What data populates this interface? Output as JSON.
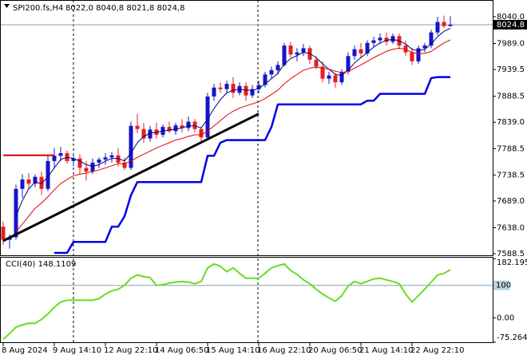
{
  "chart_data": [
    {
      "type": "candlestick",
      "title": "SPI200.fs,H4",
      "ohlc_label": "8022,0 8040,8 8021,8 8024,8",
      "categories": [
        "8 Aug 2024",
        null,
        null,
        null,
        null,
        null,
        null,
        null,
        "9 Aug 14:10",
        null,
        null,
        null,
        null,
        null,
        null,
        null,
        "12 Aug 22:10",
        null,
        null,
        null,
        null,
        null,
        null,
        null,
        "14 Aug 06:50",
        null,
        null,
        null,
        null,
        null,
        null,
        null,
        "15 Aug 14:10",
        null,
        null,
        null,
        null,
        null,
        null,
        null,
        "16 Aug 22:10",
        null,
        null,
        null,
        null,
        null,
        null,
        null,
        "20 Aug 06:50",
        null,
        null,
        null,
        null,
        null,
        null,
        null,
        "21 Aug 14:10",
        null,
        null,
        null,
        null,
        null,
        null,
        null,
        "22 Aug 22:10",
        null,
        null,
        null,
        null,
        null,
        null
      ],
      "open": [
        7640,
        7615,
        7620,
        7712,
        7730,
        7722,
        7735,
        7712,
        7765,
        7775,
        7780,
        7765,
        7770,
        7752,
        7745,
        7762,
        7768,
        7772,
        7776,
        7762,
        7752,
        7832,
        7826,
        7808,
        7825,
        7815,
        7830,
        7822,
        7833,
        7828,
        7840,
        7826,
        7810,
        7888,
        7905,
        7902,
        7912,
        7895,
        7908,
        7890,
        7902,
        7910,
        7930,
        7938,
        7948,
        7985,
        7968,
        7972,
        7980,
        7958,
        7945,
        7922,
        7928,
        7915,
        7935,
        7965,
        7978,
        7970,
        7990,
        7995,
        8000,
        7992,
        8003,
        7985,
        7972,
        7955,
        7980,
        7985,
        8010,
        8030,
        8022.0
      ],
      "high": [
        7650,
        7625,
        7720,
        7740,
        7742,
        7740,
        7745,
        7775,
        7790,
        7792,
        7785,
        7775,
        7778,
        7765,
        7770,
        7772,
        7780,
        7782,
        7790,
        7772,
        7840,
        7855,
        7838,
        7832,
        7838,
        7835,
        7840,
        7838,
        7845,
        7850,
        7845,
        7830,
        7895,
        7912,
        7915,
        7918,
        7925,
        7915,
        7915,
        7910,
        7918,
        7935,
        7945,
        7955,
        7990,
        7992,
        7980,
        7988,
        7985,
        7965,
        7955,
        7935,
        7932,
        7940,
        7972,
        7985,
        7990,
        7995,
        8002,
        8008,
        8010,
        8008,
        8008,
        7995,
        7980,
        7985,
        7990,
        8015,
        8040,
        8042,
        8040.8
      ],
      "low": [
        7605,
        7598,
        7615,
        7695,
        7712,
        7715,
        7700,
        7708,
        7752,
        7765,
        7760,
        7755,
        7740,
        7728,
        7740,
        7752,
        7758,
        7762,
        7755,
        7748,
        7748,
        7818,
        7800,
        7802,
        7808,
        7810,
        7818,
        7815,
        7820,
        7822,
        7820,
        7800,
        7805,
        7880,
        7895,
        7895,
        7885,
        7890,
        7880,
        7885,
        7895,
        7905,
        7922,
        7930,
        7945,
        7962,
        7955,
        7965,
        7950,
        7940,
        7915,
        7912,
        7905,
        7910,
        7930,
        7958,
        7962,
        7965,
        7982,
        7988,
        7985,
        7988,
        7978,
        7965,
        7948,
        7950,
        7972,
        7980,
        8005,
        8018,
        8021.8
      ],
      "close": [
        7615,
        7620,
        7712,
        7730,
        7722,
        7735,
        7712,
        7765,
        7775,
        7780,
        7765,
        7770,
        7752,
        7745,
        7762,
        7768,
        7772,
        7776,
        7762,
        7752,
        7832,
        7826,
        7808,
        7825,
        7815,
        7830,
        7822,
        7833,
        7828,
        7840,
        7826,
        7810,
        7888,
        7905,
        7902,
        7912,
        7895,
        7908,
        7890,
        7902,
        7910,
        7930,
        7938,
        7948,
        7985,
        7968,
        7972,
        7980,
        7958,
        7945,
        7922,
        7928,
        7915,
        7935,
        7965,
        7978,
        7970,
        7990,
        7995,
        8000,
        7992,
        8003,
        7985,
        7972,
        7955,
        7980,
        7985,
        8010,
        8030,
        8022,
        8024.8
      ],
      "up_color": "#1515c8",
      "down_color": "#e61e1e",
      "overlays": [
        {
          "color": "#000080",
          "line_width": 1,
          "values": [
            null,
            null,
            7660,
            7690,
            7712,
            7725,
            7722,
            7735,
            7752,
            7768,
            7772,
            7770,
            7765,
            7758,
            7755,
            7758,
            7765,
            7770,
            7770,
            7765,
            7780,
            7800,
            7812,
            7818,
            7820,
            7822,
            7824,
            7826,
            7828,
            7832,
            7832,
            7828,
            7845,
            7865,
            7882,
            7895,
            7900,
            7902,
            7900,
            7900,
            7903,
            7912,
            7922,
            7932,
            7950,
            7960,
            7966,
            7972,
            7970,
            7962,
            7950,
            7940,
            7930,
            7928,
            7938,
            7952,
            7962,
            7972,
            7982,
            7990,
            7995,
            7997,
            7994,
            7988,
            7978,
            7975,
            7978,
            7988,
            8002,
            8012,
            8018
          ]
        },
        {
          "color": "#e00000",
          "line_width": 1,
          "values": [
            null,
            null,
            7630,
            7645,
            7660,
            7675,
            7685,
            7697,
            7710,
            7722,
            7730,
            7737,
            7740,
            7742,
            7745,
            7748,
            7752,
            7756,
            7760,
            7760,
            7765,
            7772,
            7778,
            7784,
            7790,
            7795,
            7800,
            7805,
            7808,
            7812,
            7815,
            7815,
            7822,
            7832,
            7842,
            7852,
            7860,
            7866,
            7870,
            7874,
            7878,
            7884,
            7892,
            7900,
            7912,
            7922,
            7930,
            7938,
            7942,
            7944,
            7942,
            7940,
            7936,
            7934,
            7936,
            7942,
            7948,
            7955,
            7962,
            7968,
            7974,
            7978,
            7980,
            7978,
            7972,
            7970,
            7970,
            7974,
            7982,
            7990,
            7996
          ]
        },
        {
          "color": "#0000e6",
          "line_width": 2.5,
          "values": [
            null,
            null,
            null,
            null,
            null,
            null,
            null,
            null,
            7590,
            7590,
            7590,
            7611,
            7611,
            7611,
            7611,
            7611,
            7611,
            7640,
            7640,
            7660,
            7700,
            7725,
            7725,
            7725,
            7725,
            7725,
            7725,
            7725,
            7725,
            7725,
            7725,
            7725,
            7775,
            7775,
            7800,
            7805,
            7805,
            7805,
            7805,
            7805,
            7805,
            7805,
            7830,
            7873,
            7873,
            7873,
            7873,
            7873,
            7873,
            7873,
            7873,
            7873,
            7873,
            7873,
            7873,
            7873,
            7873,
            7880,
            7880,
            7893,
            7893,
            7893,
            7893,
            7893,
            7893,
            7893,
            7893,
            7923,
            7925,
            7925,
            7925
          ]
        },
        {
          "color": "#cc0000",
          "line_width": 2,
          "values": [
            7776,
            7776,
            7776,
            7776,
            7776,
            7776,
            7776,
            7776,
            7776,
            null,
            null,
            null,
            null,
            null,
            null,
            null,
            null,
            null,
            null,
            null,
            null,
            null,
            null,
            null,
            null,
            null,
            null,
            null,
            null,
            null,
            null,
            null,
            null,
            null,
            null,
            null,
            null,
            null,
            null,
            null,
            null,
            null,
            null,
            null,
            null,
            null,
            null,
            null,
            null,
            null,
            null,
            null,
            null,
            null,
            null,
            null,
            null,
            null,
            null,
            null,
            null,
            null,
            null,
            null,
            null,
            null,
            null,
            null,
            null,
            null,
            null
          ]
        }
      ],
      "trend_line": {
        "color": "#000000",
        "x": [
          0,
          40
        ],
        "values": [
          7613,
          7855
        ]
      },
      "ylim": [
        7585.5,
        8070.3
      ],
      "yticks": [
        {
          "value": 8040,
          "label": "8040.0"
        },
        {
          "value": 7989,
          "label": "7989.0"
        },
        7939.5,
        7888.5,
        {
          "value": 7839,
          "label": "7839.0"
        },
        7788.5,
        7738.5,
        {
          "value": 7689,
          "label": "7689.0"
        },
        {
          "value": 7638,
          "label": "7638.0"
        },
        7588.5
      ],
      "last_price": 8024.8
    },
    {
      "type": "line",
      "title": "CCI(40) 148.1109",
      "color": "#66dd22",
      "values": [
        -66,
        -49,
        -29,
        -22,
        -17,
        -17,
        -5,
        12,
        32,
        49,
        54,
        54,
        54,
        54,
        54,
        59,
        73,
        83,
        88,
        100,
        122,
        132,
        127,
        124,
        100,
        102,
        107,
        110,
        112,
        110,
        105,
        112,
        154,
        166,
        159,
        142,
        154,
        137,
        122,
        122,
        122,
        137,
        154,
        161,
        166,
        146,
        134,
        117,
        105,
        88,
        73,
        61,
        51,
        68,
        98,
        112,
        105,
        112,
        120,
        122,
        117,
        112,
        105,
        73,
        49,
        68,
        88,
        110,
        132,
        137,
        148.11
      ],
      "ylim": [
        -78,
        185.4
      ],
      "yticks": [
        182.1954,
        {
          "value": 0,
          "label": "0.00"
        },
        -75.2647
      ],
      "levels": [
        100
      ]
    }
  ]
}
